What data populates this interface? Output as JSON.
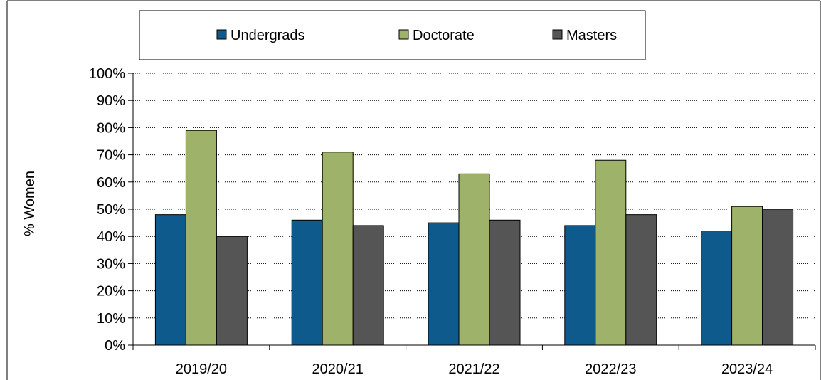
{
  "chart_data": {
    "type": "bar",
    "title": "",
    "xlabel": "",
    "ylabel": "% Women",
    "categories": [
      "2019/20",
      "2020/21",
      "2021/22",
      "2022/23",
      "2023/24"
    ],
    "series": [
      {
        "name": "Undergrads",
        "color": "#0f5a8c",
        "values": [
          48,
          46,
          45,
          44,
          42
        ]
      },
      {
        "name": "Doctorate",
        "color": "#9fb26a",
        "values": [
          79,
          71,
          63,
          68,
          51
        ]
      },
      {
        "name": "Masters",
        "color": "#555555",
        "values": [
          40,
          44,
          46,
          48,
          50
        ]
      }
    ],
    "ylim": [
      0,
      100
    ],
    "yticks": [
      "0%",
      "10%",
      "20%",
      "30%",
      "40%",
      "50%",
      "60%",
      "70%",
      "80%",
      "90%",
      "100%"
    ],
    "grid": "horizontal-dotted",
    "legend_position": "top"
  }
}
